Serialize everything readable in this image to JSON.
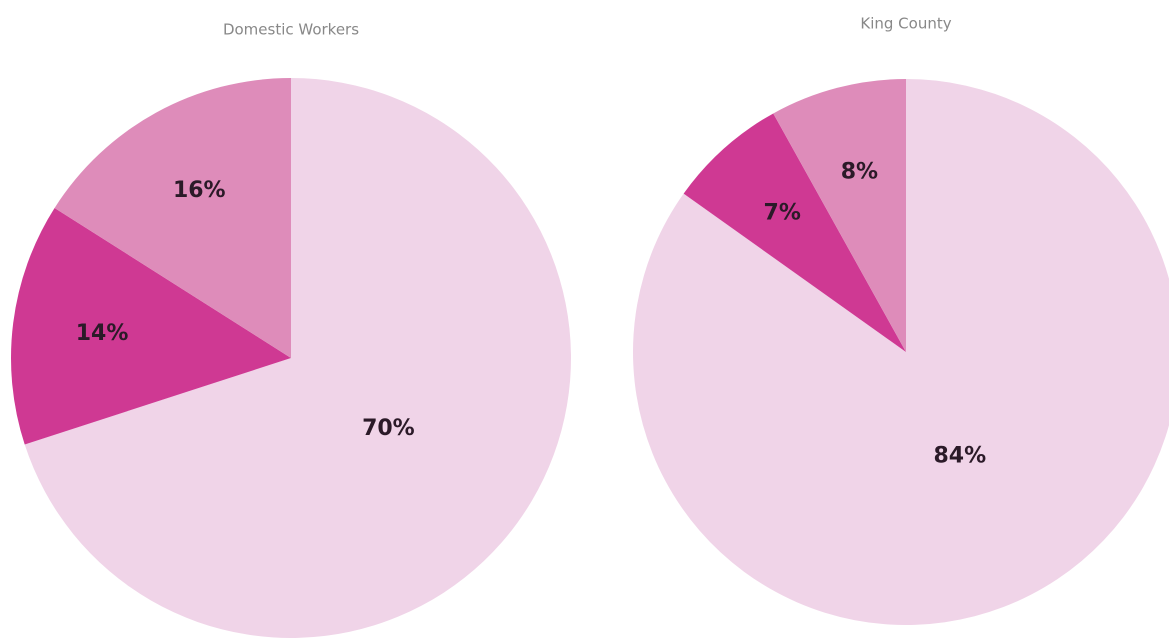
{
  "chart_data": [
    {
      "type": "pie",
      "title": "Domestic Workers",
      "values": [
        70,
        14,
        16
      ],
      "value_labels": [
        "70%",
        "14%",
        "16%"
      ],
      "colors": [
        "#f0d4e8",
        "#cf3993",
        "#de8cba"
      ]
    },
    {
      "type": "pie",
      "title": "King County",
      "values": [
        84,
        7,
        8
      ],
      "value_labels": [
        "84%",
        "7%",
        "8%"
      ],
      "colors": [
        "#f0d4e8",
        "#cf3993",
        "#de8cba"
      ]
    }
  ]
}
